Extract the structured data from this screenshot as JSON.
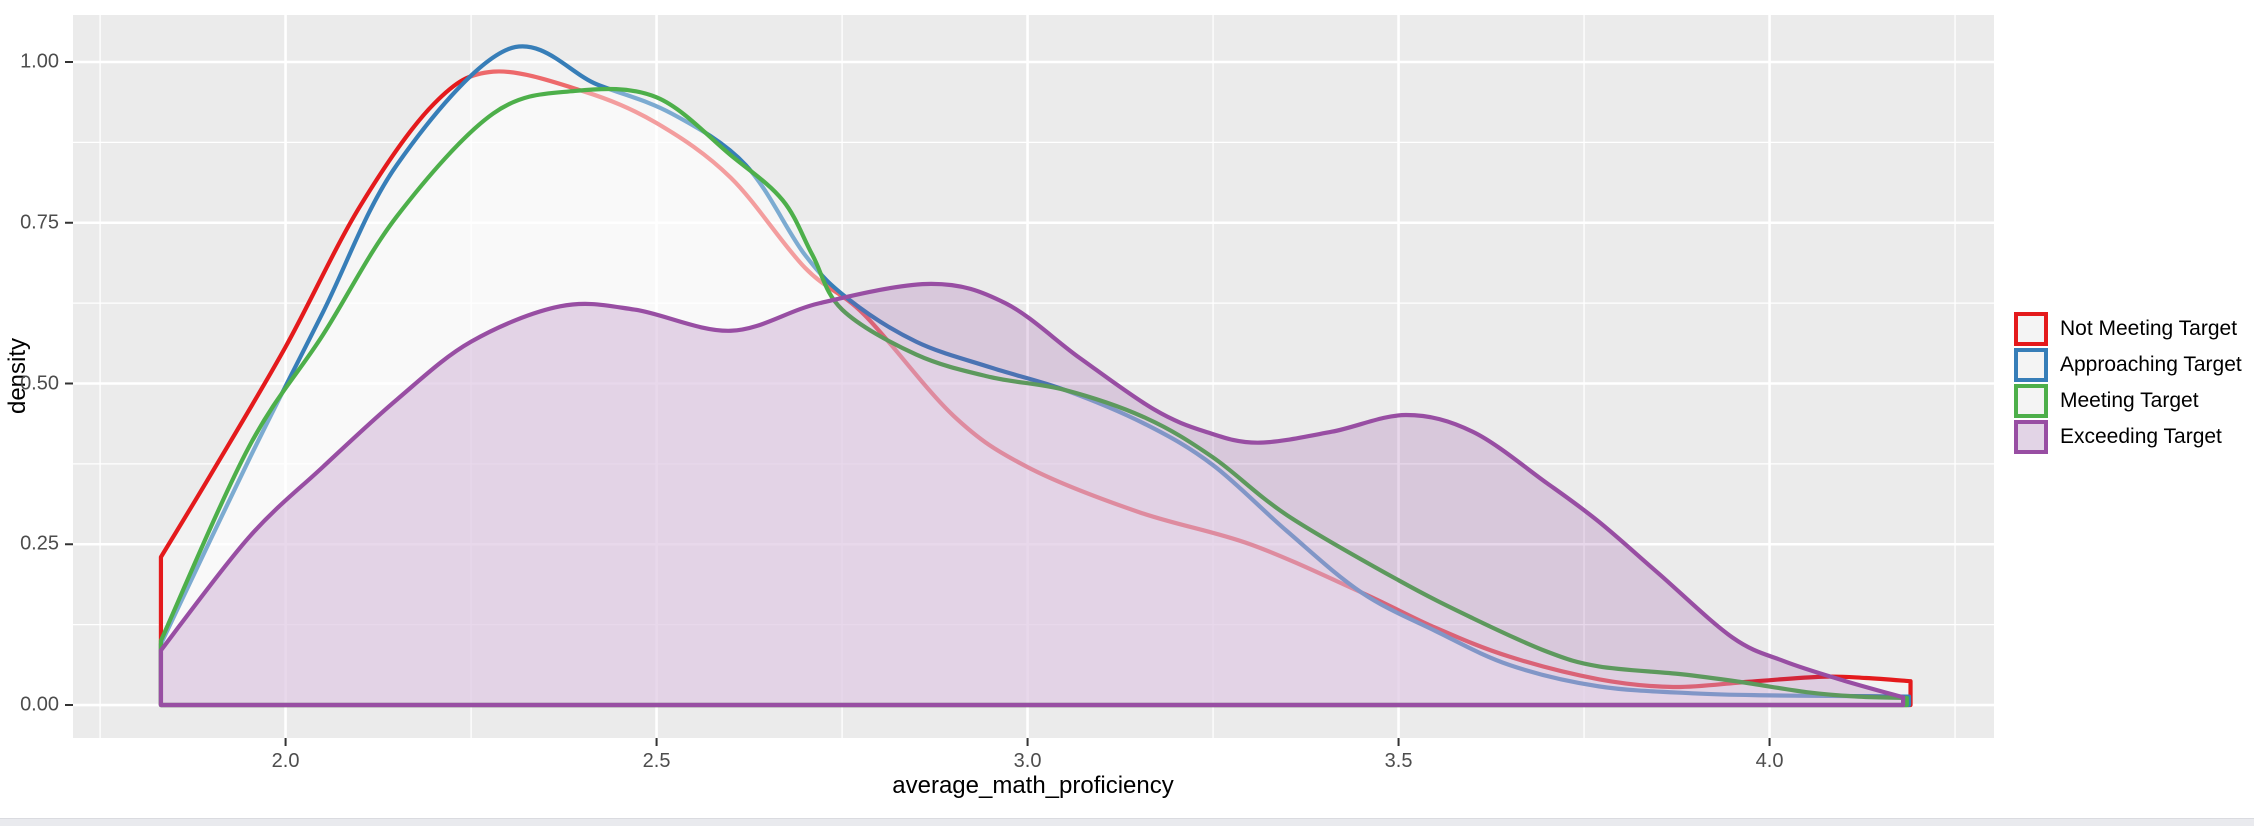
{
  "chart_data": {
    "type": "area",
    "subtype": "density-curves",
    "title": "",
    "xlabel": "average_math_proficiency",
    "ylabel": "density",
    "xlim": [
      1.7135,
      4.3025
    ],
    "ylim": [
      -0.0513,
      1.0731
    ],
    "grid": "on",
    "legend_position": "right",
    "panel_background": "#EBEBEB",
    "gridline_color": "#FFFFFF",
    "axis_text_color": "#4D4D4D",
    "tick_color": "#333333",
    "x_ticks": {
      "major": [
        2.0,
        2.5,
        3.0,
        3.5,
        4.0
      ],
      "minor": [
        1.75,
        2.25,
        2.75,
        3.25,
        3.75,
        4.25
      ],
      "labels": [
        "2.0",
        "2.5",
        "3.0",
        "3.5",
        "4.0"
      ]
    },
    "y_ticks": {
      "major": [
        0,
        0.25,
        0.5,
        0.75,
        1.0
      ],
      "minor": [
        0.125,
        0.375,
        0.625,
        0.875
      ],
      "labels": [
        "0.00",
        "0.25",
        "0.50",
        "0.75",
        "1.00"
      ]
    },
    "series": [
      {
        "name": "Not Meeting Target",
        "color": "#E41A1C",
        "fill": "rgba(255,255,255,0.35)",
        "points": [
          [
            1.832,
            0.23
          ],
          [
            1.9,
            0.36
          ],
          [
            2.0,
            0.557
          ],
          [
            2.1,
            0.775
          ],
          [
            2.2,
            0.935
          ],
          [
            2.28,
            0.985
          ],
          [
            2.4,
            0.955
          ],
          [
            2.5,
            0.905
          ],
          [
            2.6,
            0.82
          ],
          [
            2.7,
            0.68
          ],
          [
            2.78,
            0.607
          ],
          [
            2.9,
            0.45
          ],
          [
            3.0,
            0.37
          ],
          [
            3.15,
            0.3
          ],
          [
            3.3,
            0.25
          ],
          [
            3.45,
            0.175
          ],
          [
            3.55,
            0.12
          ],
          [
            3.65,
            0.075
          ],
          [
            3.77,
            0.04
          ],
          [
            3.87,
            0.028
          ],
          [
            3.97,
            0.036
          ],
          [
            4.07,
            0.044
          ],
          [
            4.13,
            0.042
          ],
          [
            4.19,
            0.037
          ]
        ]
      },
      {
        "name": "Approaching Target",
        "color": "#377EB8",
        "fill": "rgba(255,255,255,0.35)",
        "points": [
          [
            1.832,
            0.095
          ],
          [
            1.95,
            0.38
          ],
          [
            2.05,
            0.61
          ],
          [
            2.15,
            0.84
          ],
          [
            2.3,
            1.02
          ],
          [
            2.42,
            0.965
          ],
          [
            2.52,
            0.92
          ],
          [
            2.62,
            0.84
          ],
          [
            2.7,
            0.7
          ],
          [
            2.76,
            0.63
          ],
          [
            2.85,
            0.565
          ],
          [
            2.95,
            0.525
          ],
          [
            3.05,
            0.49
          ],
          [
            3.16,
            0.436
          ],
          [
            3.25,
            0.373
          ],
          [
            3.35,
            0.27
          ],
          [
            3.45,
            0.175
          ],
          [
            3.55,
            0.115
          ],
          [
            3.65,
            0.062
          ],
          [
            3.77,
            0.029
          ],
          [
            3.9,
            0.018
          ],
          [
            4.0,
            0.015
          ],
          [
            4.1,
            0.014
          ],
          [
            4.188,
            0.013
          ]
        ]
      },
      {
        "name": "Meeting Target",
        "color": "#4DAF4A",
        "fill": "rgba(255,255,255,0.35)",
        "points": [
          [
            1.832,
            0.1
          ],
          [
            1.95,
            0.4
          ],
          [
            2.05,
            0.575
          ],
          [
            2.15,
            0.76
          ],
          [
            2.28,
            0.92
          ],
          [
            2.39,
            0.955
          ],
          [
            2.5,
            0.945
          ],
          [
            2.6,
            0.855
          ],
          [
            2.67,
            0.785
          ],
          [
            2.71,
            0.7
          ],
          [
            2.75,
            0.615
          ],
          [
            2.85,
            0.545
          ],
          [
            2.95,
            0.51
          ],
          [
            3.05,
            0.49
          ],
          [
            3.16,
            0.446
          ],
          [
            3.25,
            0.385
          ],
          [
            3.35,
            0.295
          ],
          [
            3.5,
            0.194
          ],
          [
            3.6,
            0.135
          ],
          [
            3.7,
            0.083
          ],
          [
            3.77,
            0.06
          ],
          [
            3.88,
            0.048
          ],
          [
            3.96,
            0.036
          ],
          [
            4.05,
            0.02
          ],
          [
            4.12,
            0.013
          ],
          [
            4.185,
            0.011
          ]
        ]
      },
      {
        "name": "Exceeding Target",
        "color": "#984EA3",
        "fill": "rgba(152,78,163,0.22)",
        "points": [
          [
            1.832,
            0.085
          ],
          [
            1.95,
            0.26
          ],
          [
            2.05,
            0.37
          ],
          [
            2.15,
            0.475
          ],
          [
            2.25,
            0.565
          ],
          [
            2.37,
            0.62
          ],
          [
            2.47,
            0.615
          ],
          [
            2.6,
            0.582
          ],
          [
            2.72,
            0.625
          ],
          [
            2.87,
            0.655
          ],
          [
            2.97,
            0.625
          ],
          [
            3.07,
            0.54
          ],
          [
            3.17,
            0.46
          ],
          [
            3.24,
            0.425
          ],
          [
            3.31,
            0.408
          ],
          [
            3.41,
            0.425
          ],
          [
            3.51,
            0.451
          ],
          [
            3.6,
            0.425
          ],
          [
            3.7,
            0.345
          ],
          [
            3.77,
            0.285
          ],
          [
            3.85,
            0.205
          ],
          [
            3.95,
            0.105
          ],
          [
            4.02,
            0.068
          ],
          [
            4.1,
            0.038
          ],
          [
            4.18,
            0.012
          ]
        ]
      }
    ]
  },
  "legend": {
    "items": [
      {
        "label": "Not Meeting Target",
        "color": "#E41A1C",
        "key_bg": "#F4F4F4"
      },
      {
        "label": "Approaching Target",
        "color": "#377EB8",
        "key_bg": "#F4F4F4"
      },
      {
        "label": "Meeting Target",
        "color": "#4DAF4A",
        "key_bg": "#F4F4F4"
      },
      {
        "label": "Exceeding Target",
        "color": "#984EA3",
        "key_bg": "#E2D4E6"
      }
    ]
  }
}
